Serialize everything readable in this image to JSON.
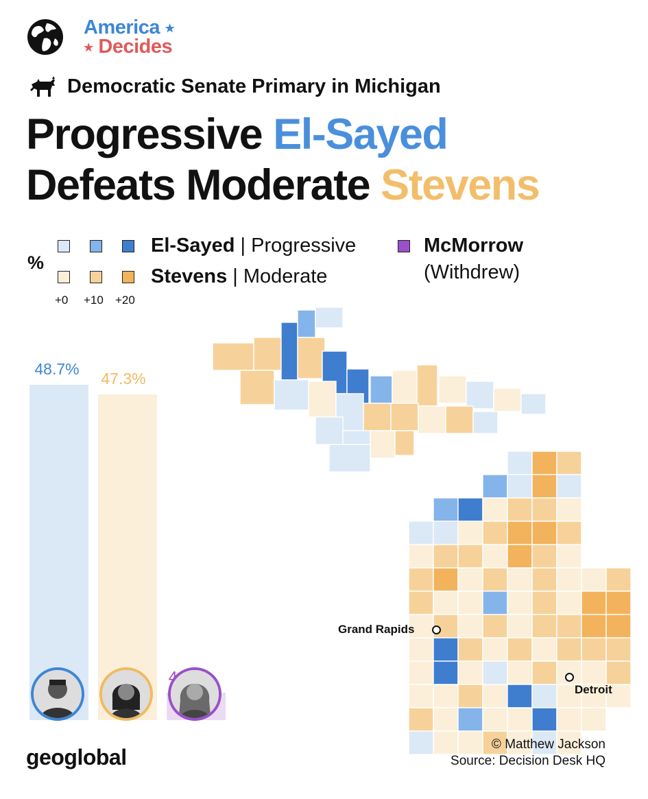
{
  "brand": {
    "line1": "America",
    "line2": "Decides",
    "star": "★"
  },
  "subtitle": "Democratic Senate Primary in Michigan",
  "headline": {
    "line1_plain": "Progressive ",
    "line1_highlight": "El-Sayed",
    "line2_plain": "Defeats Moderate ",
    "line2_highlight": "Stevens"
  },
  "legend": {
    "percent_symbol": "%",
    "rows": [
      {
        "name": "El-Sayed",
        "label": "Progressive",
        "colors": [
          "#dbe8f6",
          "#84b4ea",
          "#3f7dcf"
        ]
      },
      {
        "name": "Stevens",
        "label": "Moderate",
        "colors": [
          "#fbefd9",
          "#f6d29a",
          "#f2b35c"
        ]
      }
    ],
    "withdrawn": {
      "name": "McMorrow",
      "label": "(Withdrew)",
      "color": "#9a50c8"
    },
    "ticks": [
      "+0",
      "+10",
      "+20"
    ]
  },
  "bars": [
    {
      "candidate": "El-Sayed",
      "value": 48.7,
      "label": "48.7%",
      "color": "#dbe8f6",
      "text_color": "#3d86d6",
      "ring": "#3d86d6"
    },
    {
      "candidate": "Stevens",
      "value": 47.3,
      "label": "47.3%",
      "color": "#fcefd9",
      "text_color": "#f0ba63",
      "ring": "#f0ba63"
    },
    {
      "candidate": "McMorrow",
      "value": 4.0,
      "label": "4.0%",
      "color": "#eadbf4",
      "text_color": "#9a50c8",
      "ring": "#9a50c8"
    }
  ],
  "cities": [
    {
      "name": "Grand Rapids"
    },
    {
      "name": "Detroit"
    }
  ],
  "footer": {
    "logo": "geoglobal",
    "credit_line1": "© Matthew Jackson",
    "credit_line2": "Source: Decision Desk HQ"
  },
  "icons": [
    "globe-icon",
    "donkey-icon"
  ]
}
